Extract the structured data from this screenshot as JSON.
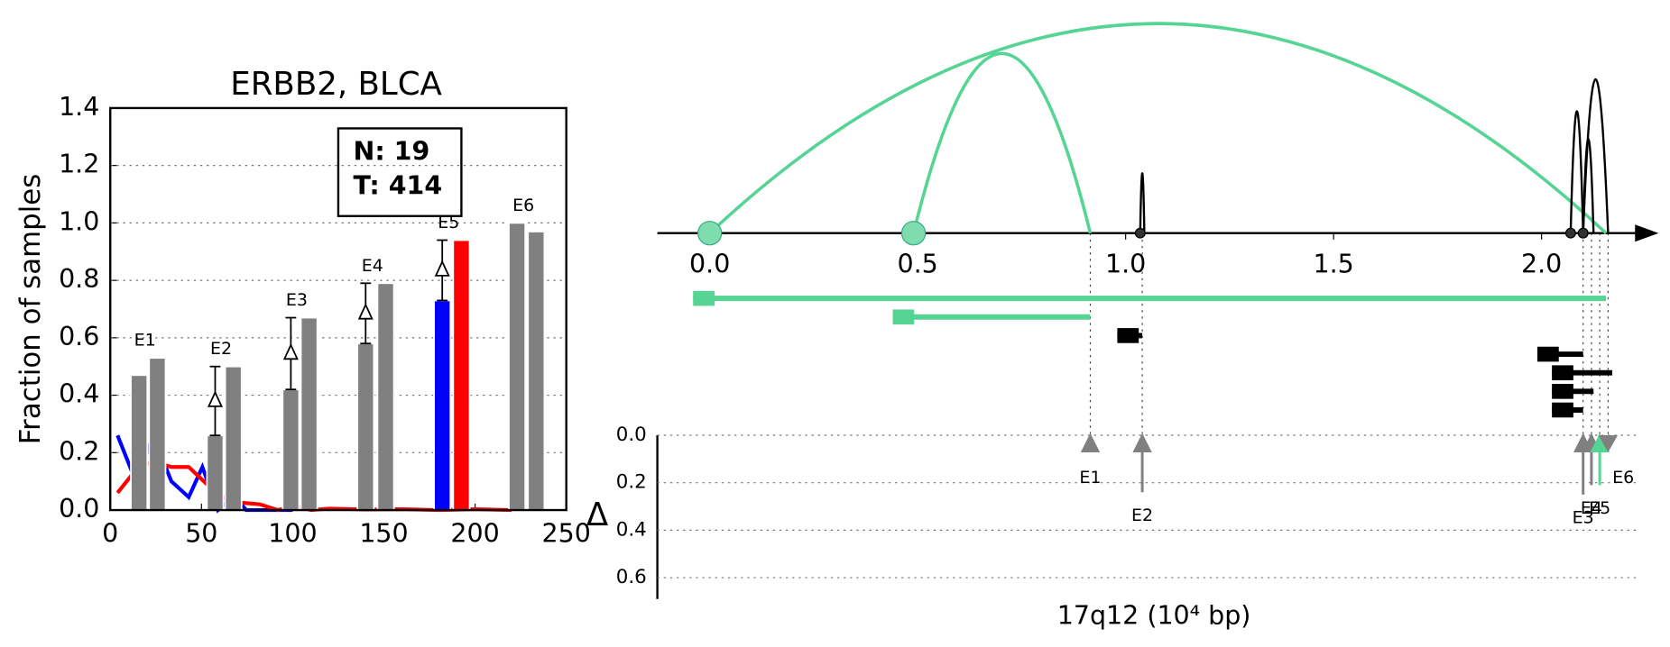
{
  "chart_data": [
    {
      "type": "bar",
      "title": "ERBB2, BLCA",
      "ylabel": "Fraction of samples",
      "xlim": [
        0,
        250
      ],
      "xticks": [
        0,
        50,
        100,
        150,
        200,
        250
      ],
      "ylim": [
        0,
        1.4
      ],
      "yticks": [
        {
          "value": 0,
          "label": "0.0"
        },
        {
          "value": 0.2,
          "label": "0.2"
        },
        {
          "value": 0.4,
          "label": "0.4"
        },
        {
          "value": 0.6,
          "label": "0.6"
        },
        {
          "value": 0.8,
          "label": "0.8"
        },
        {
          "value": 1.0,
          "label": "1.0"
        },
        {
          "value": 1.2,
          "label": "1.2"
        },
        {
          "value": 1.4,
          "label": "1.4"
        }
      ],
      "grid": true,
      "annotation": [
        "N: 19",
        "T: 414"
      ],
      "groups": [
        {
          "label": "E1",
          "label_color": "#808080",
          "x": [
            15.8,
            25.8
          ],
          "values": [
            0.47,
            0.53
          ],
          "colors": [
            "#808080",
            "#808080"
          ],
          "show_delta": false
        },
        {
          "label": "E2",
          "label_color": "#808080",
          "x": [
            57.5,
            67.5
          ],
          "values": [
            0.26,
            0.5
          ],
          "colors": [
            "#808080",
            "#808080"
          ],
          "show_delta": true
        },
        {
          "label": "E3",
          "label_color": "#808080",
          "x": [
            99,
            109
          ],
          "values": [
            0.42,
            0.67
          ],
          "colors": [
            "#808080",
            "#808080"
          ],
          "show_delta": true
        },
        {
          "label": "E4",
          "label_color": "#808080",
          "x": [
            140,
            151
          ],
          "values": [
            0.58,
            0.79
          ],
          "colors": [
            "#808080",
            "#808080"
          ],
          "show_delta": true
        },
        {
          "label": "E5",
          "label_color": "#000000",
          "x": [
            182,
            192.5
          ],
          "values": [
            0.73,
            0.94
          ],
          "colors": [
            "#0000ff",
            "#ff0000"
          ],
          "show_delta": true
        },
        {
          "label": "E6",
          "label_color": "#808080",
          "x": [
            223,
            233.5
          ],
          "values": [
            1.0,
            0.97
          ],
          "colors": [
            "#808080",
            "#808080"
          ],
          "show_delta": false
        }
      ],
      "series": [
        {
          "color": "#0000ff",
          "x": [
            4,
            14,
            23.5,
            33.5,
            43,
            50.5,
            59,
            68,
            74.5,
            100
          ],
          "values": [
            0.26,
            0.1,
            0.26,
            0.1,
            0.045,
            0.15,
            0,
            0.05,
            0,
            0
          ]
        },
        {
          "color": "#ff0000",
          "x": [
            4,
            14,
            23.5,
            33.5,
            43,
            53,
            63,
            73,
            82,
            92,
            101,
            110,
            120,
            140,
            160,
            180,
            200,
            220
          ],
          "values": [
            0.06,
            0.14,
            0.17,
            0.15,
            0.15,
            0.09,
            0.04,
            0.025,
            0.02,
            0,
            0.015,
            0,
            0.005,
            0.002,
            0.003,
            0,
            0.003,
            0
          ]
        }
      ]
    },
    {
      "type": "genome",
      "xlabel": "17q12 (10⁴ bp)",
      "delta_label": "Δ",
      "xlim": [
        -0.126,
        2.23
      ],
      "xticks": [
        {
          "value": 0,
          "label": "0.0"
        },
        0.5,
        {
          "value": 1.0,
          "label": "1.0"
        },
        1.5,
        {
          "value": 2.0,
          "label": "2.0"
        }
      ],
      "ylim": [
        0,
        0.69
      ],
      "yticks": [
        {
          "value": 0,
          "label": "0.0"
        },
        {
          "value": 0.2,
          "label": "0.2"
        },
        {
          "value": 0.4,
          "label": "0.4"
        },
        {
          "value": 0.6,
          "label": "0.6"
        }
      ],
      "junctions": [
        {
          "start": 0,
          "end": 2.155,
          "height": 0.98,
          "color": "#55d494"
        },
        {
          "start": 0.49,
          "end": 0.915,
          "height": 0.84,
          "color": "#55d494"
        },
        {
          "start": 1.035,
          "end": 1.045,
          "height": 0.28,
          "color": "#000000"
        },
        {
          "start": 2.07,
          "end": 2.1,
          "height": 0.57,
          "color": "#000000"
        },
        {
          "start": 2.1,
          "end": 2.125,
          "height": 0.44,
          "color": "#000000"
        },
        {
          "start": 2.1,
          "end": 2.16,
          "height": 0.72,
          "color": "#000000"
        }
      ],
      "tracks": [
        {
          "start": -0.04,
          "end": 2.155,
          "color": "#55d494"
        },
        {
          "start": 0.44,
          "end": 0.915,
          "color": "#55d494"
        },
        {
          "start": 0.98,
          "end": 1.04,
          "color": "#000000"
        },
        {
          "start": 1.99,
          "end": 2.1,
          "color": "#000000"
        },
        {
          "start": 2.025,
          "end": 2.17,
          "color": "#000000"
        },
        {
          "start": 2.025,
          "end": 2.125,
          "color": "#000000"
        },
        {
          "start": 2.025,
          "end": 2.1,
          "color": "#000000"
        }
      ],
      "exons": [
        {
          "label": "E1",
          "x": 0.915,
          "delta": 0.06,
          "color": "#808080"
        },
        {
          "label": "E2",
          "x": 1.04,
          "delta": 0.24,
          "color": "#808080"
        },
        {
          "label": "E3",
          "x": 2.1,
          "delta": 0.25,
          "color": "#808080"
        },
        {
          "label": "E4",
          "x": 2.12,
          "delta": 0.21,
          "color": "#808080"
        },
        {
          "label": "E5",
          "x": 2.14,
          "delta": 0.21,
          "color": "#55d494"
        },
        {
          "label": "E6",
          "x": 2.16,
          "delta": -0.03,
          "color": "#808080"
        }
      ]
    }
  ]
}
